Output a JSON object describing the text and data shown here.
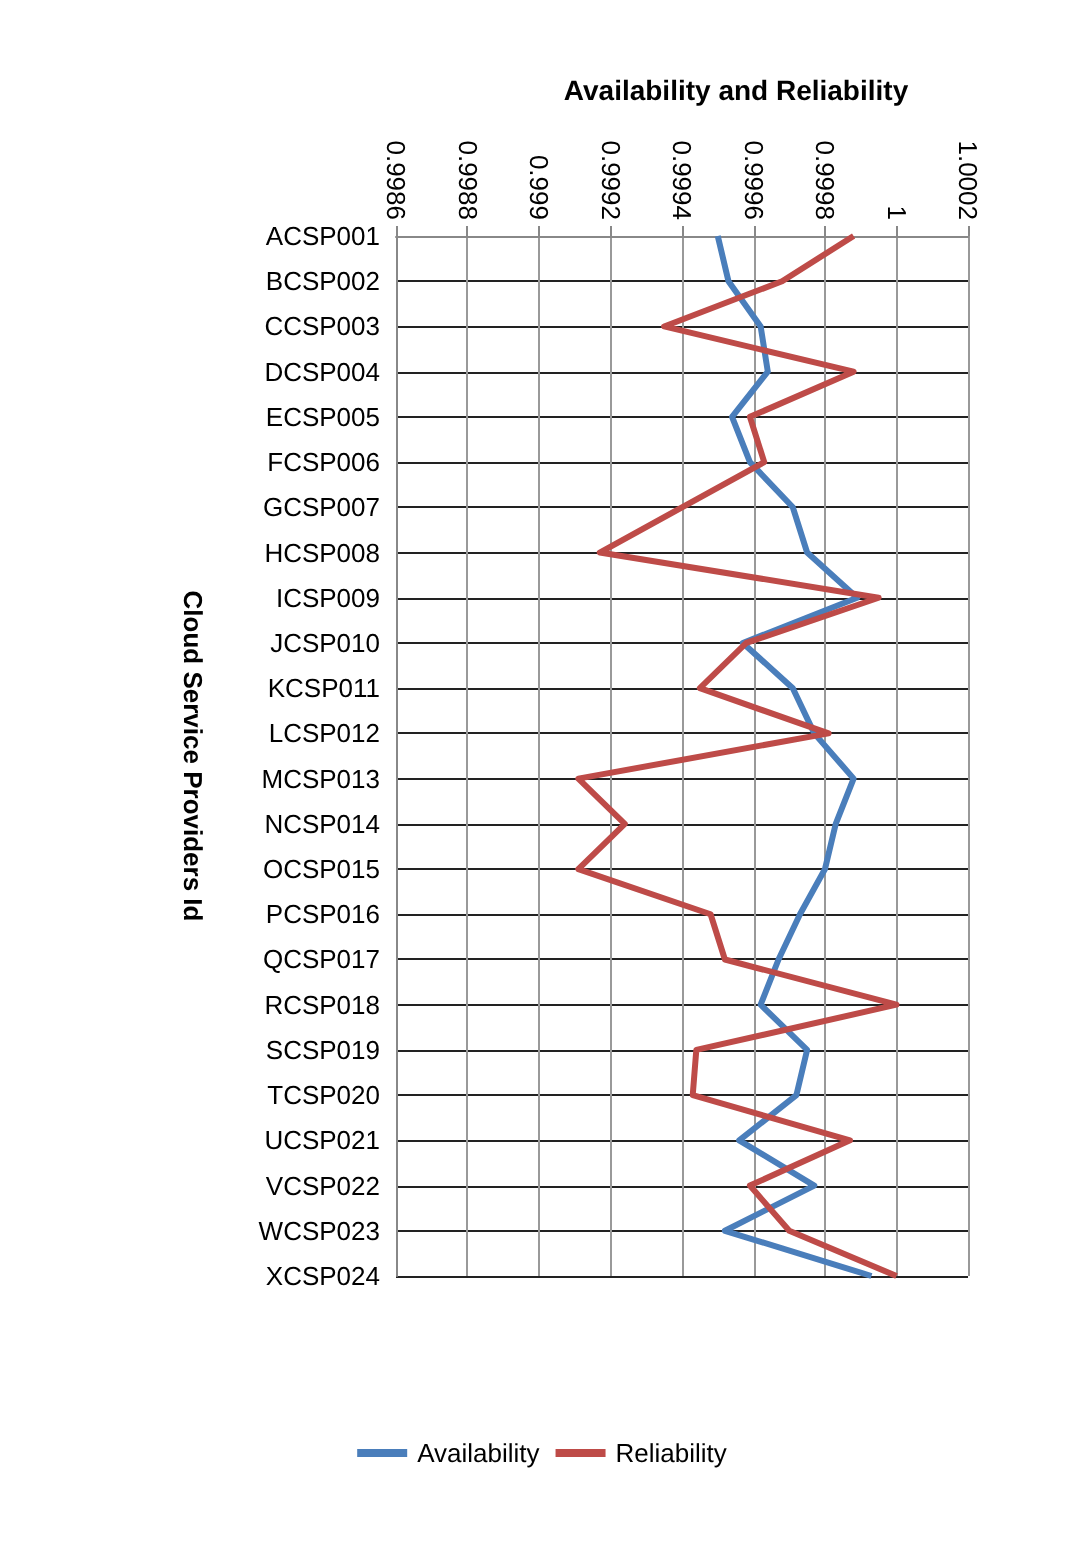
{
  "chart_data": {
    "type": "line",
    "title": "Availability and Reliability",
    "ylabel": "Cloud Service Providers Id",
    "orientation": "horizontal",
    "categories": [
      "ACSP001",
      "BCSP002",
      "CCSP003",
      "DCSP004",
      "ECSP005",
      "FCSP006",
      "GCSP007",
      "HCSP008",
      "ICSP009",
      "JCSP010",
      "KCSP011",
      "LCSP012",
      "MCSP013",
      "NCSP014",
      "OCSP015",
      "PCSP016",
      "QCSP017",
      "RCSP018",
      "SCSP019",
      "TCSP020",
      "UCSP021",
      "VCSP022",
      "WCSP023",
      "XCSP024"
    ],
    "series": [
      {
        "name": "Availability",
        "color": "#4a7ebb",
        "values": [
          0.9995,
          0.99953,
          0.99962,
          0.99964,
          0.99954,
          0.99959,
          0.99971,
          0.99975,
          0.99989,
          0.99957,
          0.99971,
          0.99977,
          0.99988,
          0.99983,
          0.9998,
          0.99973,
          0.99967,
          0.99962,
          0.99975,
          0.99972,
          0.99956,
          0.99977,
          0.99952,
          0.99993
        ]
      },
      {
        "name": "Reliability",
        "color": "#be4b48",
        "values": [
          0.99988,
          0.99968,
          0.99935,
          0.99988,
          0.99959,
          0.99963,
          0.9994,
          0.99917,
          0.99995,
          0.99958,
          0.99945,
          0.99981,
          0.99911,
          0.99924,
          0.99911,
          0.99948,
          0.99952,
          1,
          0.99944,
          0.99943,
          0.99987,
          0.99959,
          0.9997,
          1
        ]
      }
    ],
    "xlim": [
      0.9986,
      1.0002
    ],
    "xticks": [
      0.9986,
      0.9988,
      0.999,
      0.9992,
      0.9994,
      0.9996,
      0.9998,
      1,
      1.0002
    ],
    "grid": true,
    "legend": "bottom",
    "marker": "none",
    "line_style": "solid"
  }
}
